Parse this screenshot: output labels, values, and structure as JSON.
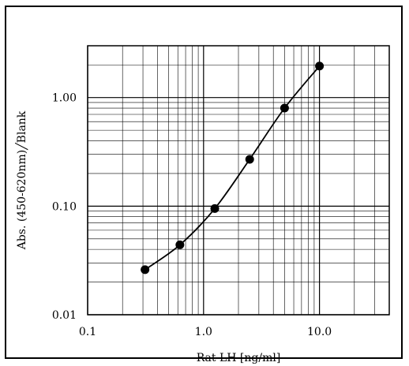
{
  "chart_data": {
    "type": "scatter",
    "title": "",
    "xlabel": "Rat LH [ng/ml]",
    "ylabel": "Abs. (450-620nm)╱Blank",
    "x_scale": "log",
    "y_scale": "log",
    "xlim": [
      0.1,
      40
    ],
    "ylim": [
      0.01,
      3
    ],
    "x_ticks": [
      {
        "value": 0.1,
        "label": "0.1"
      },
      {
        "value": 1,
        "label": "1.0"
      },
      {
        "value": 10,
        "label": "10.0"
      }
    ],
    "y_ticks": [
      {
        "value": 0.01,
        "label": "0.01"
      },
      {
        "value": 0.1,
        "label": "0.10"
      },
      {
        "value": 1,
        "label": "1.00"
      }
    ],
    "grid": true,
    "legend": "none",
    "series": [
      {
        "x": [
          0.3125,
          0.625,
          1.25,
          2.5,
          5.0,
          10.0
        ],
        "y": [
          0.026,
          0.044,
          0.095,
          0.27,
          0.8,
          1.95
        ],
        "marker": "circle",
        "smooth_line": true
      }
    ],
    "colors": {
      "line": "#000000",
      "marker": "#000000",
      "grid": "#000000"
    }
  }
}
